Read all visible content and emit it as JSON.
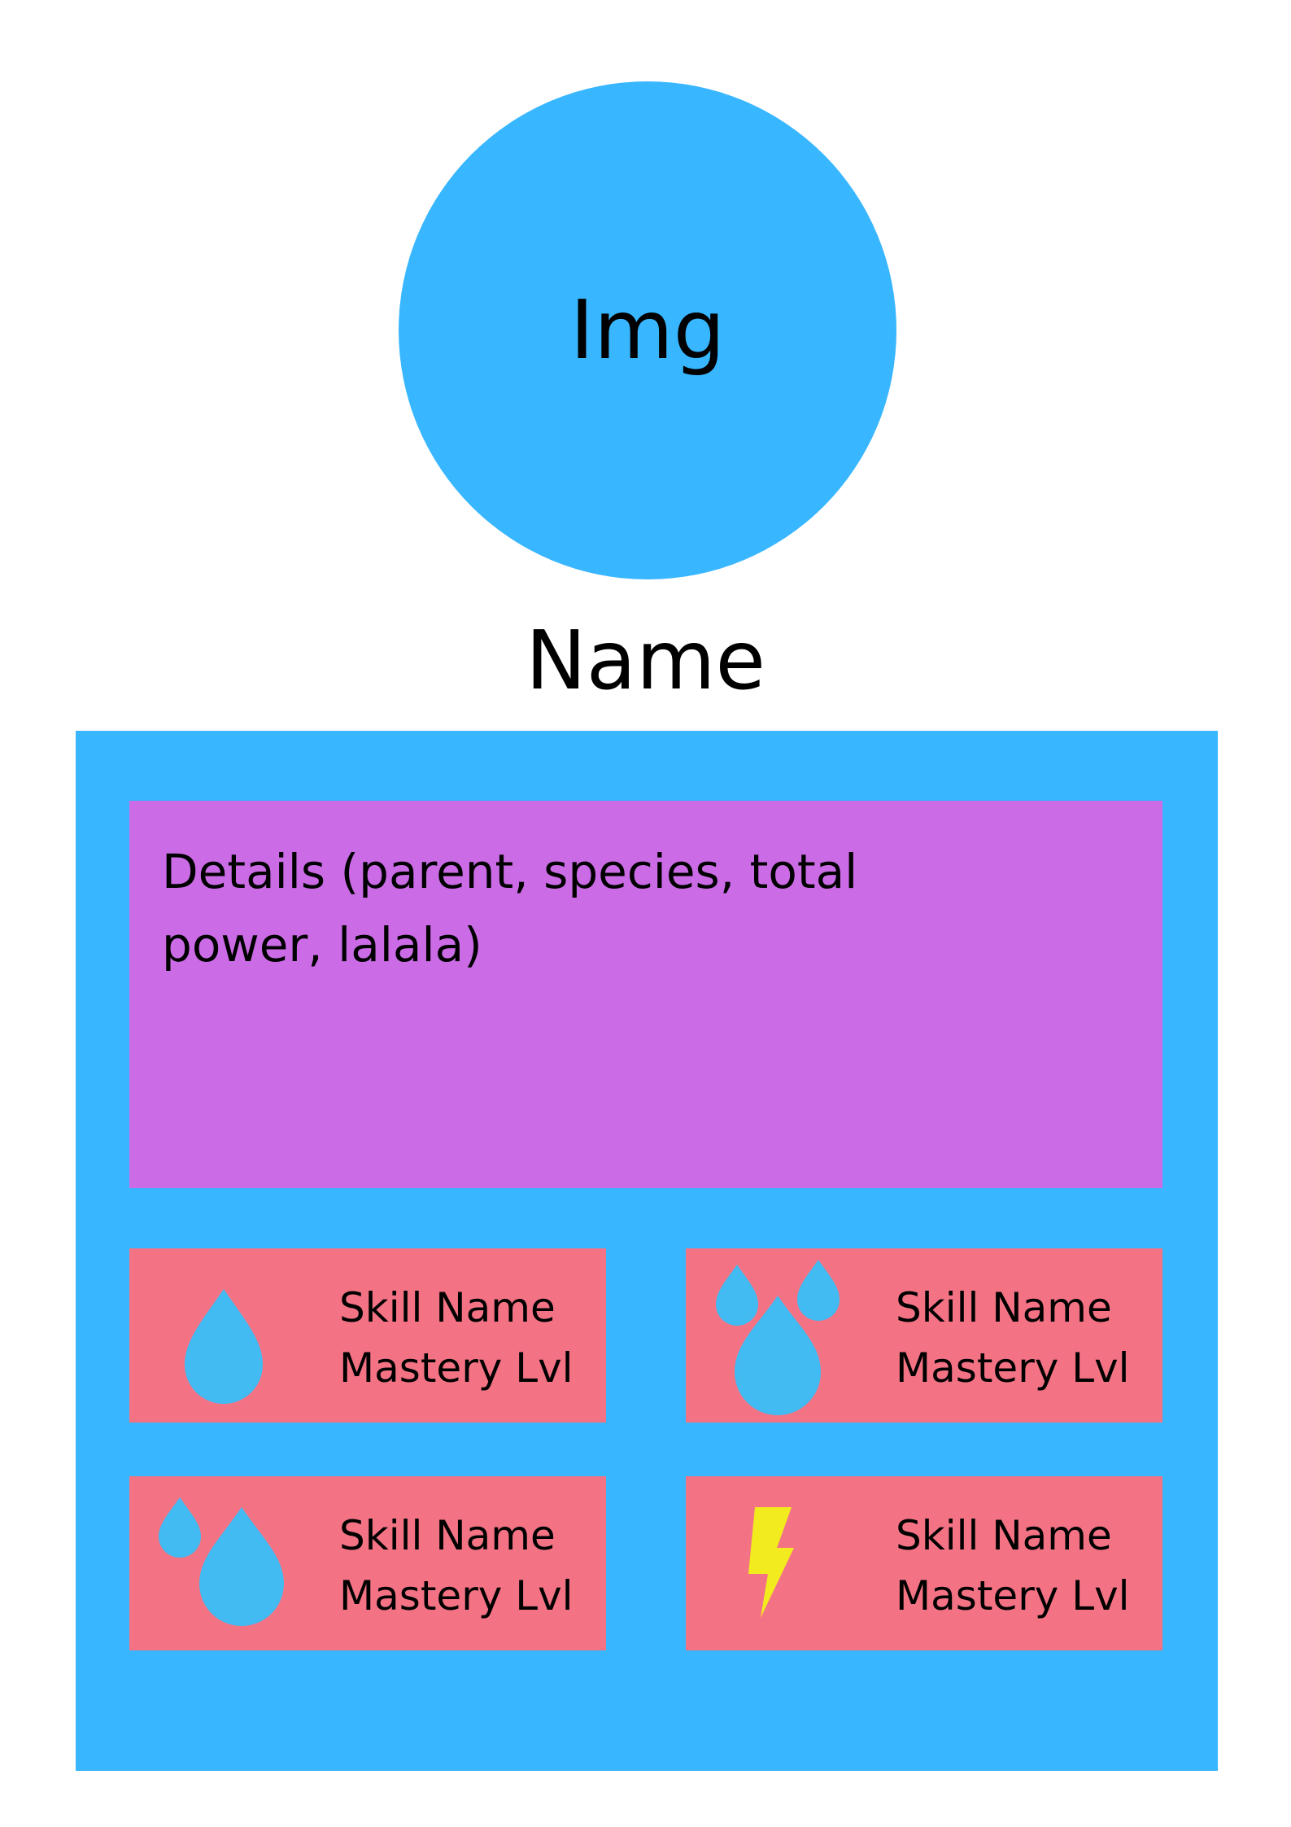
{
  "profile": {
    "image_placeholder": "Img",
    "name": "Name"
  },
  "details": {
    "text": "Details (parent, species, total power, lalala)"
  },
  "skills": [
    {
      "name": "Skill Name",
      "mastery": "Mastery Lvl",
      "icon": "water-drop-icon"
    },
    {
      "name": "Skill Name",
      "mastery": "Mastery Lvl",
      "icon": "triple-water-drop-icon"
    },
    {
      "name": "Skill Name",
      "mastery": "Mastery Lvl",
      "icon": "double-water-drop-icon"
    },
    {
      "name": "Skill Name",
      "mastery": "Mastery Lvl",
      "icon": "lightning-bolt-icon"
    }
  ],
  "colors": {
    "background": "#ffffff",
    "accent_blue": "#38b6ff",
    "details_purple": "#cb6ce6",
    "skill_pink": "#f37385",
    "drop_blue": "#42bbf2",
    "bolt_yellow": "#f2ec1f"
  }
}
